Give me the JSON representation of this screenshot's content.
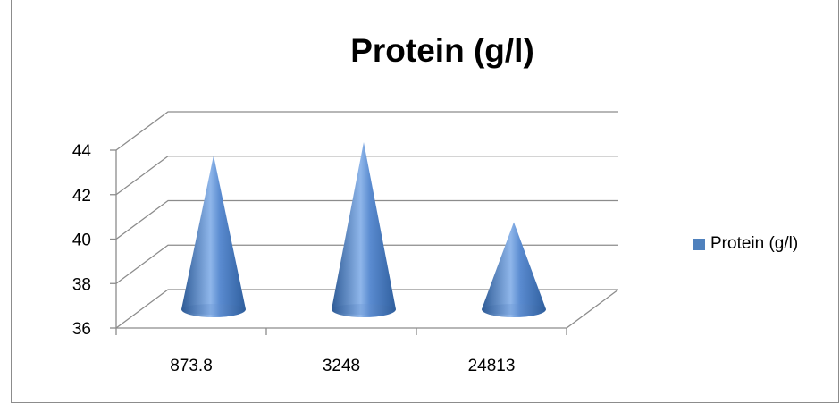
{
  "chart_data": {
    "type": "bar",
    "style": "3d-cone",
    "title": "Protein (g/l)",
    "xlabel": "",
    "ylabel": "",
    "categories": [
      "873.8",
      "3248",
      "24813"
    ],
    "series": [
      {
        "name": "Protein (g/l)",
        "values": [
          42.9,
          43.5,
          39.9
        ],
        "color": "#4f81bd"
      }
    ],
    "ylim": [
      36,
      44
    ],
    "yticks": [
      "36",
      "38",
      "40",
      "42",
      "44"
    ],
    "grid": true,
    "legend": "right"
  }
}
